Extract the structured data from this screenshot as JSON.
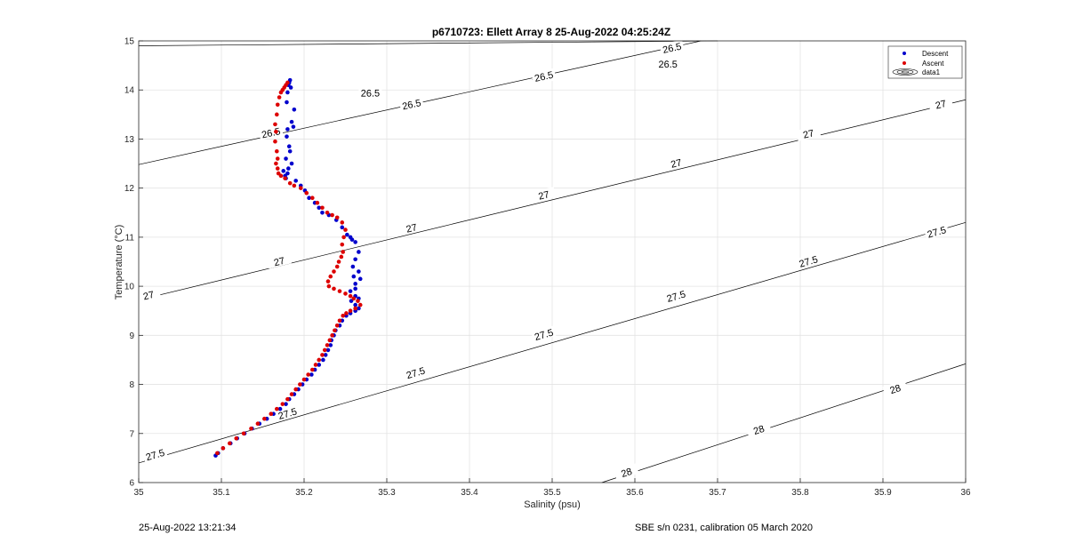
{
  "chart_data": {
    "type": "scatter",
    "title": "p6710723: Ellett Array 8 25-Aug-2022 04:25:24Z",
    "xlabel": "Salinity (psu)",
    "ylabel": "Temperature (°C)",
    "xlim": [
      35,
      36
    ],
    "ylim": [
      6,
      15
    ],
    "xticks": [
      "35",
      "35.1",
      "35.2",
      "35.3",
      "35.4",
      "35.5",
      "35.6",
      "35.7",
      "35.8",
      "35.9",
      "36"
    ],
    "yticks": [
      "6",
      "7",
      "8",
      "9",
      "10",
      "11",
      "12",
      "13",
      "14",
      "15"
    ],
    "grid": true,
    "legend_position": "top-right",
    "legend": [
      "Descent",
      "Ascent",
      "data1"
    ],
    "series": [
      {
        "name": "Descent",
        "color": "#0000cc",
        "x": [
          35.183,
          35.182,
          35.181,
          35.184,
          35.18,
          35.179,
          35.188,
          35.185,
          35.18,
          35.179,
          35.187,
          35.182,
          35.183,
          35.178,
          35.185,
          35.181,
          35.18,
          35.177,
          35.175,
          35.178,
          35.19,
          35.196,
          35.201,
          35.206,
          35.213,
          35.218,
          35.222,
          35.23,
          35.239,
          35.246,
          35.252,
          35.256,
          35.258,
          35.262,
          35.266,
          35.262,
          35.259,
          35.266,
          35.26,
          35.268,
          35.262,
          35.262,
          35.256,
          35.262,
          35.266,
          35.257,
          35.262,
          35.266,
          35.262,
          35.256,
          35.251,
          35.246,
          35.243,
          35.238,
          35.236,
          35.233,
          35.232,
          35.229,
          35.226,
          35.223,
          35.218,
          35.213,
          35.209,
          35.203,
          35.198,
          35.193,
          35.188,
          35.182,
          35.178,
          35.171,
          35.163,
          35.155,
          35.146,
          35.137,
          35.128,
          35.119,
          35.111,
          35.102,
          35.096,
          35.093
        ],
        "y": [
          14.2,
          14.15,
          14.1,
          14.05,
          13.95,
          13.75,
          13.6,
          13.35,
          13.2,
          13.05,
          13.25,
          12.85,
          12.75,
          12.6,
          12.5,
          12.4,
          12.3,
          12.25,
          12.35,
          12.2,
          12.15,
          12.05,
          11.95,
          11.8,
          11.7,
          11.6,
          11.5,
          11.45,
          11.35,
          11.2,
          11.05,
          11.0,
          10.95,
          10.9,
          10.7,
          10.55,
          10.4,
          10.3,
          10.2,
          10.15,
          10.05,
          9.95,
          9.9,
          9.8,
          9.75,
          9.7,
          9.62,
          9.55,
          9.5,
          9.45,
          9.4,
          9.3,
          9.2,
          9.1,
          9.0,
          8.9,
          8.8,
          8.7,
          8.6,
          8.5,
          8.4,
          8.3,
          8.2,
          8.1,
          8.0,
          7.9,
          7.8,
          7.7,
          7.6,
          7.5,
          7.4,
          7.3,
          7.2,
          7.1,
          7.0,
          6.9,
          6.8,
          6.7,
          6.6,
          6.55
        ]
      },
      {
        "name": "Ascent",
        "color": "#dd0000",
        "x": [
          35.18,
          35.178,
          35.176,
          35.174,
          35.172,
          35.17,
          35.168,
          35.167,
          35.165,
          35.166,
          35.165,
          35.167,
          35.168,
          35.166,
          35.168,
          35.169,
          35.172,
          35.177,
          35.183,
          35.188,
          35.196,
          35.203,
          35.21,
          35.216,
          35.222,
          35.228,
          35.234,
          35.24,
          35.246,
          35.25,
          35.248,
          35.246,
          35.247,
          35.245,
          35.242,
          35.24,
          35.236,
          35.232,
          35.229,
          35.23,
          35.236,
          35.243,
          35.25,
          35.256,
          35.26,
          35.265,
          35.268,
          35.262,
          35.256,
          35.251,
          35.247,
          35.243,
          35.24,
          35.237,
          35.234,
          35.231,
          35.228,
          35.225,
          35.222,
          35.218,
          35.214,
          35.21,
          35.205,
          35.2,
          35.195,
          35.19,
          35.185,
          35.18,
          35.174,
          35.167,
          35.16,
          35.152,
          35.144,
          35.136,
          35.127,
          35.118,
          35.11,
          35.102,
          35.095
        ],
        "y": [
          14.15,
          14.1,
          14.05,
          14.0,
          13.95,
          13.85,
          13.7,
          13.5,
          13.3,
          13.15,
          12.95,
          12.75,
          12.6,
          12.5,
          12.4,
          12.3,
          12.25,
          12.2,
          12.1,
          12.05,
          12.0,
          11.9,
          11.8,
          11.7,
          11.6,
          11.5,
          11.45,
          11.4,
          11.3,
          11.15,
          11.0,
          10.85,
          10.7,
          10.6,
          10.5,
          10.4,
          10.3,
          10.2,
          10.1,
          10.0,
          9.95,
          9.9,
          9.85,
          9.8,
          9.75,
          9.7,
          9.62,
          9.55,
          9.5,
          9.45,
          9.4,
          9.3,
          9.2,
          9.1,
          9.0,
          8.9,
          8.8,
          8.7,
          8.6,
          8.5,
          8.4,
          8.3,
          8.2,
          8.1,
          8.0,
          7.9,
          7.8,
          7.7,
          7.6,
          7.5,
          7.4,
          7.3,
          7.2,
          7.1,
          7.0,
          6.9,
          6.8,
          6.7,
          6.6
        ]
      }
    ],
    "contours": [
      {
        "level": "26.5",
        "points": [
          [
            35.0,
            14.9
          ],
          [
            35.7,
            15.0
          ]
        ],
        "label_at": [
          [
            35.28,
            13.93
          ],
          [
            35.487,
            14.27
          ],
          [
            35.64,
            14.52
          ]
        ]
      },
      {
        "level": "26.5",
        "points": [
          [
            35.0,
            12.48
          ],
          [
            35.68,
            15.0
          ]
        ],
        "label_at": [
          [
            35.16,
            13.12
          ],
          [
            35.33,
            13.7
          ],
          [
            35.49,
            14.27
          ],
          [
            35.645,
            14.85
          ]
        ]
      },
      {
        "level": "27",
        "points": [
          [
            35.0,
            9.72
          ],
          [
            36.0,
            13.8
          ]
        ],
        "label_at": [
          [
            35.012,
            9.81
          ],
          [
            35.17,
            10.5
          ],
          [
            35.33,
            11.18
          ],
          [
            35.49,
            11.85
          ],
          [
            35.65,
            12.5
          ],
          [
            35.81,
            13.1
          ],
          [
            35.97,
            13.7
          ]
        ]
      },
      {
        "level": "27.5",
        "points": [
          [
            35.0,
            6.4
          ],
          [
            36.0,
            11.3
          ]
        ],
        "label_at": [
          [
            35.02,
            6.56
          ],
          [
            35.18,
            7.4
          ],
          [
            35.335,
            8.23
          ],
          [
            35.49,
            9.01
          ],
          [
            35.65,
            9.79
          ],
          [
            35.81,
            10.5
          ],
          [
            35.965,
            11.1
          ]
        ]
      },
      {
        "level": "28",
        "points": [
          [
            35.56,
            6.0
          ],
          [
            36.0,
            8.42
          ]
        ],
        "label_at": [
          [
            35.59,
            6.2
          ],
          [
            35.75,
            7.07
          ],
          [
            35.915,
            7.9
          ]
        ]
      }
    ]
  },
  "footer": {
    "timestamp": "25-Aug-2022 13:21:34",
    "calibration": "SBE s/n 0231, calibration 05 March 2020"
  }
}
